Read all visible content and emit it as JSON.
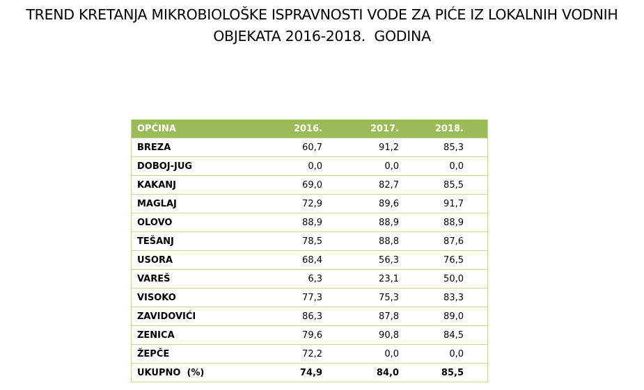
{
  "header": {
    "title_lines": [
      "TREND KRETANJA MIKROBIOLOŠKE ISPRAVNOSTI VODE ZA PIĆE IZ LOKALNIH VODNIH",
      "OBJEKATA 2016-2018.  GODINA"
    ]
  },
  "table": {
    "columns": [
      "OPĆINA",
      "2016.",
      "2017.",
      "2018."
    ],
    "rows": [
      [
        "BREZA",
        "60,7",
        "91,2",
        "85,3"
      ],
      [
        "DOBOJ-JUG",
        "0,0",
        "0,0",
        "0,0"
      ],
      [
        "KAKANJ",
        "69,0",
        "82,7",
        "85,5"
      ],
      [
        "MAGLAJ",
        "72,9",
        "89,6",
        "91,7"
      ],
      [
        "OLOVO",
        "88,9",
        "88,9",
        "88,9"
      ],
      [
        "TEŠANJ",
        "78,5",
        "88,8",
        "87,6"
      ],
      [
        "USORA",
        "68,4",
        "56,3",
        "76,5"
      ],
      [
        "VAREŠ",
        "6,3",
        "23,1",
        "50,0"
      ],
      [
        "VISOKO",
        "77,3",
        "75,3",
        "83,3"
      ],
      [
        "ZAVIDOVIĆI",
        "86,3",
        "87,8",
        "89,0"
      ],
      [
        "ZENICA",
        "79,6",
        "90,8",
        "84,5"
      ],
      [
        "ŽEPČE",
        "72,2",
        "0,0",
        "0,0"
      ],
      [
        "UKUPNO  (%)",
        "74,9",
        "84,0",
        "85,5"
      ]
    ]
  }
}
